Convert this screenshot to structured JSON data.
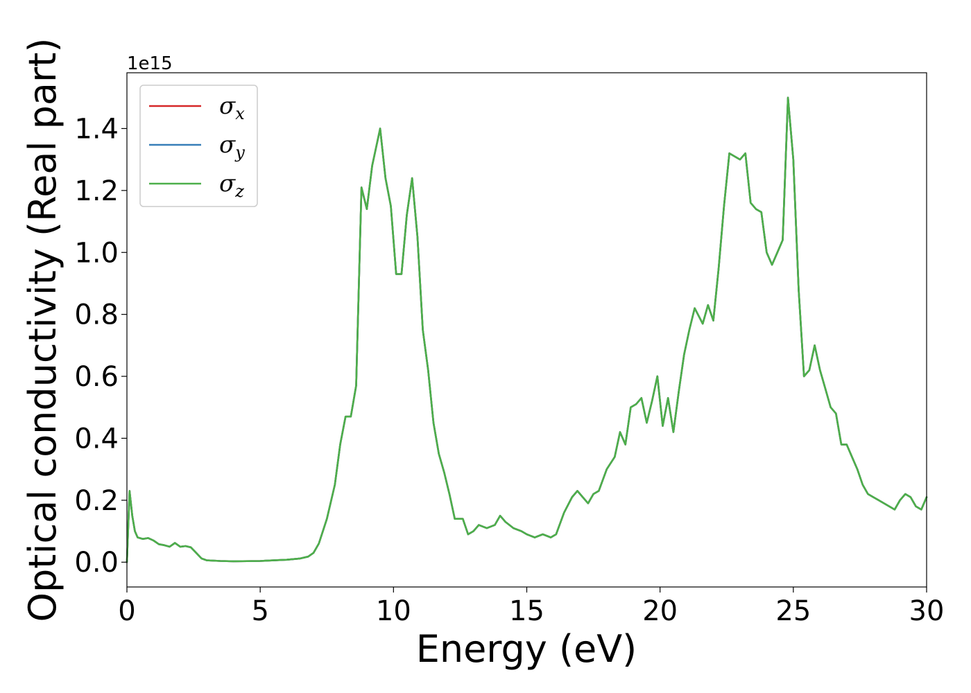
{
  "chart_data": {
    "type": "line",
    "xlabel": "Energy (eV)",
    "ylabel": "Optical conductivity (Real part)",
    "y_offset_text": "1e15",
    "xlim": [
      0,
      30
    ],
    "ylim": [
      -0.08,
      1.58
    ],
    "x_ticks": [
      0,
      5,
      10,
      15,
      20,
      25,
      30
    ],
    "x_tick_labels": [
      "0",
      "5",
      "10",
      "15",
      "20",
      "25",
      "30"
    ],
    "y_ticks": [
      0.0,
      0.2,
      0.4,
      0.6,
      0.8,
      1.0,
      1.2,
      1.4
    ],
    "y_tick_labels": [
      "0.0",
      "0.2",
      "0.4",
      "0.6",
      "0.8",
      "1.0",
      "1.2",
      "1.4"
    ],
    "grid": false,
    "legend_position": "top-left",
    "series": [
      {
        "name": "σx",
        "legend_base": "σ",
        "legend_sub": "x",
        "color": "#d62728"
      },
      {
        "name": "σy",
        "legend_base": "σ",
        "legend_sub": "y",
        "color": "#377eb8"
      },
      {
        "name": "σz",
        "legend_base": "σ",
        "legend_sub": "z",
        "color": "#4daf4a"
      }
    ],
    "note": "all three series overlap; shared values below",
    "x": [
      0,
      0.1,
      0.2,
      0.3,
      0.4,
      0.6,
      0.8,
      1.0,
      1.2,
      1.4,
      1.6,
      1.8,
      2.0,
      2.2,
      2.4,
      2.6,
      2.8,
      3.0,
      3.5,
      4.0,
      5.0,
      6.0,
      6.5,
      6.8,
      7.0,
      7.2,
      7.5,
      7.8,
      8.0,
      8.2,
      8.4,
      8.6,
      8.8,
      9.0,
      9.2,
      9.5,
      9.7,
      9.9,
      10.1,
      10.3,
      10.5,
      10.7,
      10.9,
      11.1,
      11.3,
      11.5,
      11.7,
      11.9,
      12.1,
      12.3,
      12.6,
      12.8,
      13.0,
      13.2,
      13.5,
      13.8,
      14.0,
      14.2,
      14.5,
      14.8,
      15.0,
      15.3,
      15.6,
      15.9,
      16.1,
      16.4,
      16.7,
      16.9,
      17.1,
      17.3,
      17.5,
      17.7,
      18.0,
      18.3,
      18.5,
      18.7,
      18.9,
      19.1,
      19.3,
      19.5,
      19.7,
      19.9,
      20.1,
      20.3,
      20.5,
      20.7,
      20.9,
      21.1,
      21.3,
      21.6,
      21.8,
      22.0,
      22.2,
      22.4,
      22.6,
      22.8,
      23.0,
      23.2,
      23.4,
      23.6,
      23.8,
      24.0,
      24.2,
      24.4,
      24.6,
      24.8,
      25.0,
      25.2,
      25.4,
      25.6,
      25.8,
      26.0,
      26.2,
      26.4,
      26.6,
      26.8,
      27.0,
      27.2,
      27.4,
      27.6,
      27.8,
      28.0,
      28.2,
      28.4,
      28.6,
      28.8,
      29.0,
      29.2,
      29.4,
      29.6,
      29.8,
      30.0
    ],
    "y": [
      0.0,
      0.23,
      0.15,
      0.1,
      0.08,
      0.075,
      0.078,
      0.07,
      0.058,
      0.055,
      0.05,
      0.062,
      0.05,
      0.052,
      0.048,
      0.03,
      0.012,
      0.006,
      0.004,
      0.003,
      0.004,
      0.008,
      0.012,
      0.018,
      0.03,
      0.06,
      0.14,
      0.25,
      0.38,
      0.47,
      0.47,
      0.57,
      1.21,
      1.14,
      1.28,
      1.4,
      1.24,
      1.15,
      0.93,
      0.93,
      1.12,
      1.24,
      1.05,
      0.75,
      0.62,
      0.45,
      0.35,
      0.29,
      0.22,
      0.14,
      0.14,
      0.09,
      0.1,
      0.12,
      0.11,
      0.12,
      0.15,
      0.13,
      0.11,
      0.1,
      0.09,
      0.08,
      0.09,
      0.08,
      0.09,
      0.16,
      0.21,
      0.23,
      0.21,
      0.19,
      0.22,
      0.23,
      0.3,
      0.34,
      0.42,
      0.38,
      0.5,
      0.51,
      0.53,
      0.45,
      0.52,
      0.6,
      0.44,
      0.53,
      0.42,
      0.55,
      0.67,
      0.75,
      0.82,
      0.77,
      0.83,
      0.78,
      0.95,
      1.15,
      1.32,
      1.31,
      1.3,
      1.32,
      1.16,
      1.14,
      1.13,
      1.0,
      0.96,
      1.0,
      1.04,
      1.5,
      1.3,
      0.88,
      0.6,
      0.62,
      0.7,
      0.62,
      0.56,
      0.5,
      0.48,
      0.38,
      0.38,
      0.34,
      0.3,
      0.25,
      0.22,
      0.21,
      0.2,
      0.19,
      0.18,
      0.17,
      0.2,
      0.22,
      0.21,
      0.18,
      0.17,
      0.21
    ]
  }
}
